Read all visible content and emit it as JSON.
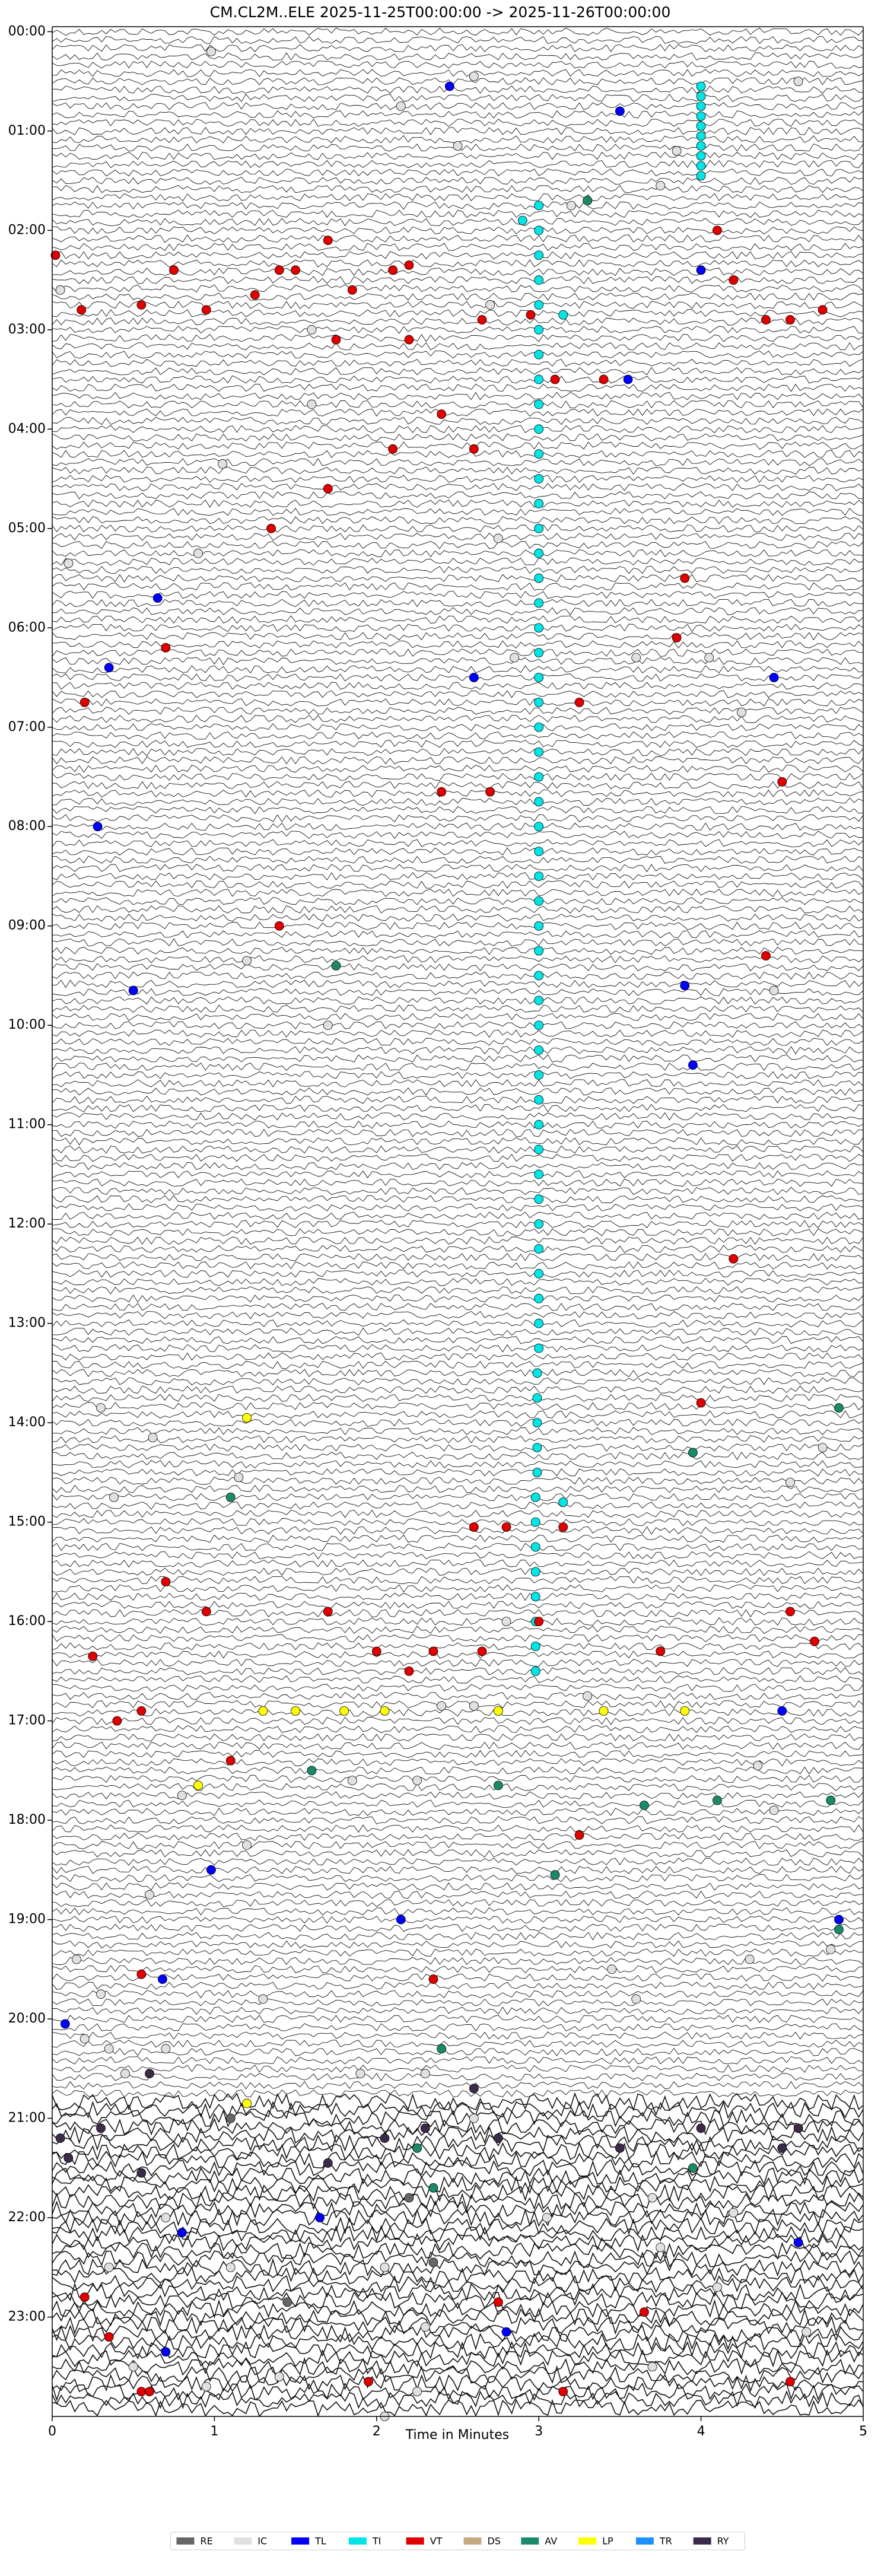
{
  "chart_data": {
    "type": "scatter",
    "title": "CM.CL2M..ELE  2025-11-25T00:00:00 -> 2025-11-26T00:00:00",
    "xlabel": "Time in Minutes",
    "xlim": [
      0,
      5
    ],
    "xticks": [
      0,
      1,
      2,
      3,
      4,
      5
    ],
    "ylim": [
      -0.05,
      24
    ],
    "y_inverted": true,
    "yticks": [
      {
        "value": 0,
        "label": "00:00"
      },
      {
        "value": 1,
        "label": "01:00"
      },
      {
        "value": 2,
        "label": "02:00"
      },
      {
        "value": 3,
        "label": "03:00"
      },
      {
        "value": 4,
        "label": "04:00"
      },
      {
        "value": 5,
        "label": "05:00"
      },
      {
        "value": 6,
        "label": "06:00"
      },
      {
        "value": 7,
        "label": "07:00"
      },
      {
        "value": 8,
        "label": "08:00"
      },
      {
        "value": 9,
        "label": "09:00"
      },
      {
        "value": 10,
        "label": "10:00"
      },
      {
        "value": 11,
        "label": "11:00"
      },
      {
        "value": 12,
        "label": "12:00"
      },
      {
        "value": 13,
        "label": "13:00"
      },
      {
        "value": 14,
        "label": "14:00"
      },
      {
        "value": 15,
        "label": "15:00"
      },
      {
        "value": 16,
        "label": "16:00"
      },
      {
        "value": 17,
        "label": "17:00"
      },
      {
        "value": 18,
        "label": "18:00"
      },
      {
        "value": 19,
        "label": "19:00"
      },
      {
        "value": 20,
        "label": "20:00"
      },
      {
        "value": 21,
        "label": "21:00"
      },
      {
        "value": 22,
        "label": "22:00"
      },
      {
        "value": 23,
        "label": "23:00"
      }
    ],
    "legend": "lower center",
    "series": [
      {
        "name": "RE",
        "color": "#666666",
        "x": [
          2.35,
          1.45,
          1.1,
          2.2
        ],
        "y": [
          22.45,
          22.85,
          21.0,
          21.8
        ]
      },
      {
        "name": "IC",
        "color": "#e0e0e0",
        "x": [
          0.98,
          2.6,
          2.15,
          4.6,
          3.2,
          2.5,
          3.85,
          3.75,
          0.05,
          2.7,
          1.6,
          1.6,
          1.05,
          0.9,
          0.1,
          2.75,
          2.85,
          3.6,
          4.05,
          4.25,
          1.2,
          4.45,
          1.7,
          0.3,
          0.62,
          0.38,
          1.15,
          2.8,
          3.3,
          2.4,
          2.6,
          4.55,
          4.75,
          0.8,
          1.85,
          2.25,
          4.35,
          4.45,
          1.2,
          0.6,
          0.15,
          0.3,
          0.35,
          0.45,
          1.3,
          1.9,
          2.3,
          3.45,
          3.6,
          4.3,
          4.8,
          0.2,
          0.7,
          2.6,
          3.7,
          4.2,
          0.7,
          0.35,
          1.1,
          2.05,
          3.05,
          3.75,
          4.1,
          0.5,
          1.4,
          2.3,
          2.25,
          3.7,
          4.65,
          0.95,
          2.05
        ],
        "y": [
          0.2,
          0.45,
          0.75,
          0.5,
          1.75,
          1.15,
          1.2,
          1.55,
          2.6,
          2.75,
          3.0,
          3.75,
          4.35,
          5.25,
          5.35,
          5.1,
          6.3,
          6.3,
          6.3,
          6.85,
          9.35,
          9.65,
          10.0,
          13.85,
          14.15,
          14.75,
          14.55,
          16.0,
          16.75,
          16.85,
          16.85,
          14.6,
          14.25,
          17.75,
          17.6,
          17.6,
          17.45,
          17.9,
          18.25,
          18.75,
          19.4,
          19.75,
          20.3,
          20.55,
          19.8,
          20.55,
          20.55,
          19.5,
          19.8,
          19.4,
          19.3,
          20.2,
          20.3,
          21.0,
          21.8,
          21.95,
          22.0,
          22.5,
          22.5,
          22.5,
          22.0,
          22.3,
          22.7,
          23.5,
          23.6,
          23.1,
          23.75,
          23.5,
          23.15,
          23.7,
          24.0
        ]
      },
      {
        "name": "TL",
        "color": "#0000ff",
        "x": [
          2.45,
          3.5,
          4.0,
          3.55,
          0.65,
          0.35,
          2.6,
          4.45,
          0.28,
          0.5,
          3.9,
          3.95,
          0.98,
          4.5,
          2.15,
          4.85,
          0.68,
          0.08,
          1.65,
          0.8,
          0.7,
          2.8,
          4.6
        ],
        "y": [
          0.55,
          0.8,
          2.4,
          3.5,
          5.7,
          6.4,
          6.5,
          6.5,
          8.0,
          9.65,
          9.6,
          10.4,
          18.5,
          16.9,
          19.0,
          19.0,
          19.6,
          20.05,
          22.0,
          22.15,
          23.35,
          23.15,
          22.25
        ]
      },
      {
        "name": "TI",
        "color": "#00e5e5",
        "x": [
          4.0,
          4.0,
          4.0,
          4.0,
          4.0,
          4.0,
          4.0,
          4.0,
          4.0,
          4.0,
          2.9,
          3.15,
          3.15,
          3.0,
          3.0,
          3.0,
          3.0,
          3.0,
          3.0,
          3.0,
          3.0,
          3.0,
          3.0,
          3.0,
          3.0,
          3.0,
          3.0,
          3.0,
          3.0,
          3.0,
          3.0,
          3.0,
          3.0,
          3.0,
          3.0,
          3.0,
          3.0,
          3.0,
          3.0,
          3.0,
          3.0,
          3.0,
          3.0,
          3.0,
          3.0,
          3.0,
          3.0,
          3.0,
          3.0,
          3.0,
          3.0,
          3.0,
          3.0,
          3.0,
          3.0,
          3.0,
          3.0,
          3.0,
          3.0,
          3.0,
          2.99,
          2.99,
          2.99,
          2.99,
          2.99,
          2.98,
          2.98,
          2.98,
          2.98,
          2.98,
          2.98,
          2.98,
          2.98
        ],
        "y": [
          0.55,
          0.65,
          0.75,
          0.85,
          0.95,
          1.05,
          1.15,
          1.25,
          1.35,
          1.45,
          1.9,
          2.85,
          14.8,
          1.75,
          2.0,
          2.25,
          2.5,
          2.75,
          3.0,
          3.25,
          3.5,
          3.75,
          4.0,
          4.25,
          4.5,
          4.75,
          5.0,
          5.25,
          5.5,
          5.75,
          6.0,
          6.25,
          6.5,
          6.75,
          7.0,
          7.25,
          7.5,
          7.75,
          8.0,
          8.25,
          8.5,
          8.75,
          9.0,
          9.25,
          9.5,
          9.75,
          10.0,
          10.25,
          10.5,
          10.75,
          11.0,
          11.25,
          11.5,
          11.75,
          12.0,
          12.25,
          12.5,
          12.75,
          13.0,
          13.25,
          13.5,
          13.75,
          14.0,
          14.25,
          14.5,
          14.75,
          15.0,
          15.25,
          15.5,
          15.75,
          16.0,
          16.25,
          16.5
        ]
      },
      {
        "name": "VT",
        "color": "#e00000",
        "x": [
          0.02,
          0.18,
          0.55,
          0.75,
          0.95,
          1.25,
          1.4,
          1.5,
          1.7,
          1.85,
          2.1,
          2.2,
          2.95,
          2.65,
          1.75,
          2.2,
          3.1,
          3.4,
          4.1,
          4.2,
          4.4,
          4.55,
          4.75,
          2.4,
          2.1,
          2.6,
          1.7,
          1.35,
          3.9,
          3.85,
          0.7,
          0.2,
          3.25,
          2.4,
          2.7,
          4.5,
          1.4,
          4.4,
          4.2,
          4.0,
          2.6,
          2.8,
          3.15,
          0.7,
          0.95,
          1.7,
          2.0,
          2.2,
          2.35,
          2.65,
          3.0,
          3.75,
          4.55,
          4.7,
          0.25,
          0.4,
          0.55,
          1.1,
          3.25,
          2.35,
          0.55,
          0.2,
          0.35,
          0.55,
          0.6,
          1.95,
          2.75,
          3.15,
          3.65,
          4.55
        ],
        "y": [
          2.25,
          2.8,
          2.75,
          2.4,
          2.8,
          2.65,
          2.4,
          2.4,
          2.1,
          2.6,
          2.4,
          2.35,
          2.85,
          2.9,
          3.1,
          3.1,
          3.5,
          3.5,
          2.0,
          2.5,
          2.9,
          2.9,
          2.8,
          3.85,
          4.2,
          4.2,
          4.6,
          5.0,
          5.5,
          6.1,
          6.2,
          6.75,
          6.75,
          7.65,
          7.65,
          7.55,
          9.0,
          9.3,
          12.35,
          13.8,
          15.05,
          15.05,
          15.05,
          15.6,
          15.9,
          15.9,
          16.3,
          16.5,
          16.3,
          16.3,
          16.0,
          16.3,
          15.9,
          16.2,
          16.35,
          17.0,
          16.9,
          17.4,
          18.15,
          19.6,
          19.55,
          22.8,
          23.2,
          23.75,
          23.75,
          23.65,
          22.85,
          23.75,
          22.95,
          23.65
        ]
      },
      {
        "name": "DS",
        "color": "#c8a882",
        "x": [],
        "y": []
      },
      {
        "name": "AV",
        "color": "#1a8a6a",
        "x": [
          3.3,
          1.75,
          1.1,
          1.6,
          2.75,
          3.65,
          4.1,
          4.8,
          4.85,
          3.95,
          3.1,
          2.4,
          4.85,
          2.25,
          3.95,
          2.35
        ],
        "y": [
          1.7,
          9.4,
          14.75,
          17.5,
          17.65,
          17.85,
          17.8,
          17.8,
          13.85,
          14.3,
          18.55,
          20.3,
          19.1,
          21.3,
          21.5,
          21.7
        ]
      },
      {
        "name": "LP",
        "color": "#ffff00",
        "x": [
          1.2,
          1.3,
          1.5,
          1.8,
          2.05,
          2.75,
          3.4,
          3.9,
          0.9,
          1.2
        ],
        "y": [
          13.95,
          16.9,
          16.9,
          16.9,
          16.9,
          16.9,
          16.9,
          16.9,
          17.65,
          20.85
        ]
      },
      {
        "name": "TR",
        "color": "#1e90ff",
        "x": [],
        "y": []
      },
      {
        "name": "RY",
        "color": "#3d2a4a",
        "x": [
          0.05,
          0.3,
          0.6,
          0.1,
          1.7,
          2.3,
          2.6,
          2.75,
          3.5,
          4.0,
          4.5,
          4.6,
          0.55,
          2.05
        ],
        "y": [
          21.2,
          21.1,
          20.55,
          21.4,
          21.45,
          21.1,
          20.7,
          21.2,
          21.3,
          21.1,
          21.3,
          21.1,
          21.55,
          21.2
        ]
      }
    ]
  }
}
